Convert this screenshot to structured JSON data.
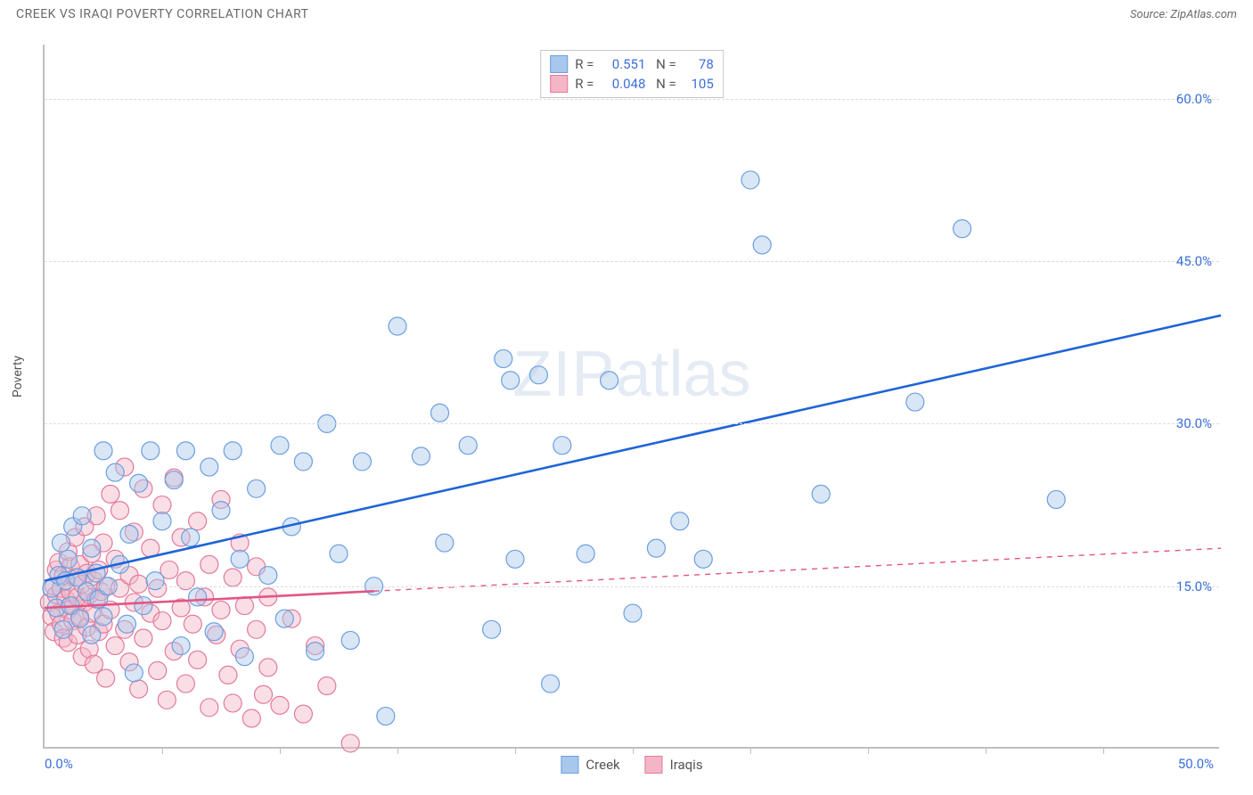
{
  "title": "CREEK VS IRAQI POVERTY CORRELATION CHART",
  "source": "Source: ZipAtlas.com",
  "y_axis_label": "Poverty",
  "watermark_zip": "ZIP",
  "watermark_atlas": "atlas",
  "chart": {
    "type": "scatter",
    "xlim": [
      0,
      50
    ],
    "ylim": [
      0,
      65
    ],
    "x_ticks_minor": [
      5,
      10,
      15,
      20,
      25,
      30,
      35,
      40,
      45
    ],
    "x_ticks_labeled": [
      {
        "v": 0,
        "label": "0.0%"
      },
      {
        "v": 50,
        "label": "50.0%"
      }
    ],
    "y_ticks_labeled": [
      {
        "v": 15,
        "label": "15.0%"
      },
      {
        "v": 30,
        "label": "30.0%"
      },
      {
        "v": 45,
        "label": "45.0%"
      },
      {
        "v": 60,
        "label": "60.0%"
      }
    ],
    "grid_color": "#dcdcdc",
    "axis_color": "#bfbfbf",
    "background_color": "#ffffff",
    "marker_radius": 10,
    "marker_stroke_width": 1.2,
    "marker_fill_opacity": 0.45,
    "line_width": 2.6
  },
  "series": [
    {
      "name": "Creek",
      "label": "Creek",
      "color_fill": "#a8c7ec",
      "color_stroke": "#6b9fe0",
      "trend_color": "#1e64d8",
      "R": "0.551",
      "N": "78",
      "trend": {
        "x1": 0,
        "y1": 15.5,
        "x2": 50,
        "y2": 40,
        "solid_until_x": 50
      },
      "points": [
        [
          0.3,
          14.8
        ],
        [
          0.5,
          13
        ],
        [
          0.6,
          16
        ],
        [
          0.7,
          19
        ],
        [
          0.8,
          11
        ],
        [
          0.9,
          15.5
        ],
        [
          1.0,
          17.5
        ],
        [
          1.1,
          13.2
        ],
        [
          1.2,
          20.5
        ],
        [
          1.4,
          15.8
        ],
        [
          1.5,
          12
        ],
        [
          1.6,
          21.5
        ],
        [
          1.8,
          14.5
        ],
        [
          2.0,
          18.5
        ],
        [
          2.0,
          10.5
        ],
        [
          2.2,
          16.2
        ],
        [
          2.3,
          13.8
        ],
        [
          2.5,
          12.2
        ],
        [
          2.5,
          27.5
        ],
        [
          2.7,
          15
        ],
        [
          3.0,
          25.5
        ],
        [
          3.2,
          17
        ],
        [
          3.5,
          11.5
        ],
        [
          3.6,
          19.8
        ],
        [
          3.8,
          7
        ],
        [
          4.0,
          24.5
        ],
        [
          4.2,
          13.2
        ],
        [
          4.5,
          27.5
        ],
        [
          4.7,
          15.5
        ],
        [
          5.0,
          21
        ],
        [
          5.5,
          24.8
        ],
        [
          5.8,
          9.5
        ],
        [
          6.0,
          27.5
        ],
        [
          6.2,
          19.5
        ],
        [
          6.5,
          14
        ],
        [
          7.0,
          26
        ],
        [
          7.2,
          10.8
        ],
        [
          7.5,
          22
        ],
        [
          8.0,
          27.5
        ],
        [
          8.3,
          17.5
        ],
        [
          8.5,
          8.5
        ],
        [
          9.0,
          24
        ],
        [
          9.5,
          16
        ],
        [
          10,
          28
        ],
        [
          10.2,
          12
        ],
        [
          10.5,
          20.5
        ],
        [
          11,
          26.5
        ],
        [
          11.5,
          9
        ],
        [
          12,
          30
        ],
        [
          12.5,
          18
        ],
        [
          13,
          10
        ],
        [
          13.5,
          26.5
        ],
        [
          14,
          15
        ],
        [
          14.5,
          3
        ],
        [
          15,
          39
        ],
        [
          16,
          27
        ],
        [
          16.8,
          31
        ],
        [
          17,
          19
        ],
        [
          18,
          28
        ],
        [
          19,
          11
        ],
        [
          19.5,
          36
        ],
        [
          19.8,
          34
        ],
        [
          20,
          17.5
        ],
        [
          21,
          34.5
        ],
        [
          21.5,
          6
        ],
        [
          22,
          28
        ],
        [
          23,
          18
        ],
        [
          24,
          34
        ],
        [
          25,
          12.5
        ],
        [
          26,
          18.5
        ],
        [
          27,
          21
        ],
        [
          28,
          17.5
        ],
        [
          30,
          52.5
        ],
        [
          30.5,
          46.5
        ],
        [
          33,
          23.5
        ],
        [
          37,
          32
        ],
        [
          39,
          48
        ],
        [
          43,
          23
        ]
      ]
    },
    {
      "name": "Iraqis",
      "label": "Iraqis",
      "color_fill": "#f4b6c7",
      "color_stroke": "#e27a9a",
      "trend_color": "#e25584",
      "R": "0.048",
      "N": "105",
      "trend": {
        "x1": 0,
        "y1": 13,
        "x2": 50,
        "y2": 18.5,
        "solid_until_x": 14
      },
      "points": [
        [
          0.2,
          13.5
        ],
        [
          0.3,
          12.2
        ],
        [
          0.4,
          15
        ],
        [
          0.4,
          10.8
        ],
        [
          0.5,
          16.5
        ],
        [
          0.5,
          14.2
        ],
        [
          0.6,
          12.5
        ],
        [
          0.6,
          17.2
        ],
        [
          0.7,
          11.5
        ],
        [
          0.7,
          14.8
        ],
        [
          0.8,
          16
        ],
        [
          0.8,
          10.2
        ],
        [
          0.9,
          13.8
        ],
        [
          0.9,
          15.5
        ],
        [
          1.0,
          12.8
        ],
        [
          1.0,
          18.2
        ],
        [
          1.0,
          9.8
        ],
        [
          1.1,
          14.5
        ],
        [
          1.1,
          16.8
        ],
        [
          1.2,
          11.8
        ],
        [
          1.2,
          13.2
        ],
        [
          1.3,
          15.8
        ],
        [
          1.3,
          19.5
        ],
        [
          1.4,
          10.5
        ],
        [
          1.4,
          14
        ],
        [
          1.5,
          17
        ],
        [
          1.5,
          12.2
        ],
        [
          1.6,
          15.2
        ],
        [
          1.6,
          8.5
        ],
        [
          1.7,
          13.5
        ],
        [
          1.7,
          20.5
        ],
        [
          1.8,
          11.2
        ],
        [
          1.8,
          16.2
        ],
        [
          1.9,
          14.2
        ],
        [
          1.9,
          9.2
        ],
        [
          2.0,
          18
        ],
        [
          2.0,
          12.5
        ],
        [
          2.1,
          15.5
        ],
        [
          2.1,
          7.8
        ],
        [
          2.2,
          13.8
        ],
        [
          2.2,
          21.5
        ],
        [
          2.3,
          10.8
        ],
        [
          2.3,
          16.5
        ],
        [
          2.4,
          14.5
        ],
        [
          2.5,
          19
        ],
        [
          2.5,
          11.5
        ],
        [
          2.6,
          6.5
        ],
        [
          2.6,
          15
        ],
        [
          2.8,
          23.5
        ],
        [
          2.8,
          12.8
        ],
        [
          3.0,
          17.5
        ],
        [
          3.0,
          9.5
        ],
        [
          3.2,
          14.8
        ],
        [
          3.2,
          22
        ],
        [
          3.4,
          11
        ],
        [
          3.4,
          26
        ],
        [
          3.6,
          8
        ],
        [
          3.6,
          16
        ],
        [
          3.8,
          13.5
        ],
        [
          3.8,
          20
        ],
        [
          4.0,
          5.5
        ],
        [
          4.0,
          15.2
        ],
        [
          4.2,
          24
        ],
        [
          4.2,
          10.2
        ],
        [
          4.5,
          12.5
        ],
        [
          4.5,
          18.5
        ],
        [
          4.8,
          7.2
        ],
        [
          4.8,
          14.8
        ],
        [
          5.0,
          22.5
        ],
        [
          5.0,
          11.8
        ],
        [
          5.2,
          4.5
        ],
        [
          5.3,
          16.5
        ],
        [
          5.5,
          9
        ],
        [
          5.5,
          25
        ],
        [
          5.8,
          13
        ],
        [
          5.8,
          19.5
        ],
        [
          6.0,
          6
        ],
        [
          6.0,
          15.5
        ],
        [
          6.3,
          11.5
        ],
        [
          6.5,
          21
        ],
        [
          6.5,
          8.2
        ],
        [
          6.8,
          14
        ],
        [
          7.0,
          3.8
        ],
        [
          7.0,
          17
        ],
        [
          7.3,
          10.5
        ],
        [
          7.5,
          23
        ],
        [
          7.5,
          12.8
        ],
        [
          7.8,
          6.8
        ],
        [
          8.0,
          15.8
        ],
        [
          8.0,
          4.2
        ],
        [
          8.3,
          19
        ],
        [
          8.3,
          9.2
        ],
        [
          8.5,
          13.2
        ],
        [
          8.8,
          2.8
        ],
        [
          9.0,
          11
        ],
        [
          9.0,
          16.8
        ],
        [
          9.3,
          5
        ],
        [
          9.5,
          14
        ],
        [
          9.5,
          7.5
        ],
        [
          10,
          4
        ],
        [
          10.5,
          12
        ],
        [
          11,
          3.2
        ],
        [
          11.5,
          9.5
        ],
        [
          12,
          5.8
        ],
        [
          13,
          0.5
        ]
      ]
    }
  ],
  "legend_bottom": [
    {
      "label": "Creek",
      "fill": "#a8c7ec",
      "stroke": "#6b9fe0"
    },
    {
      "label": "Iraqis",
      "fill": "#f4b6c7",
      "stroke": "#e27a9a"
    }
  ]
}
